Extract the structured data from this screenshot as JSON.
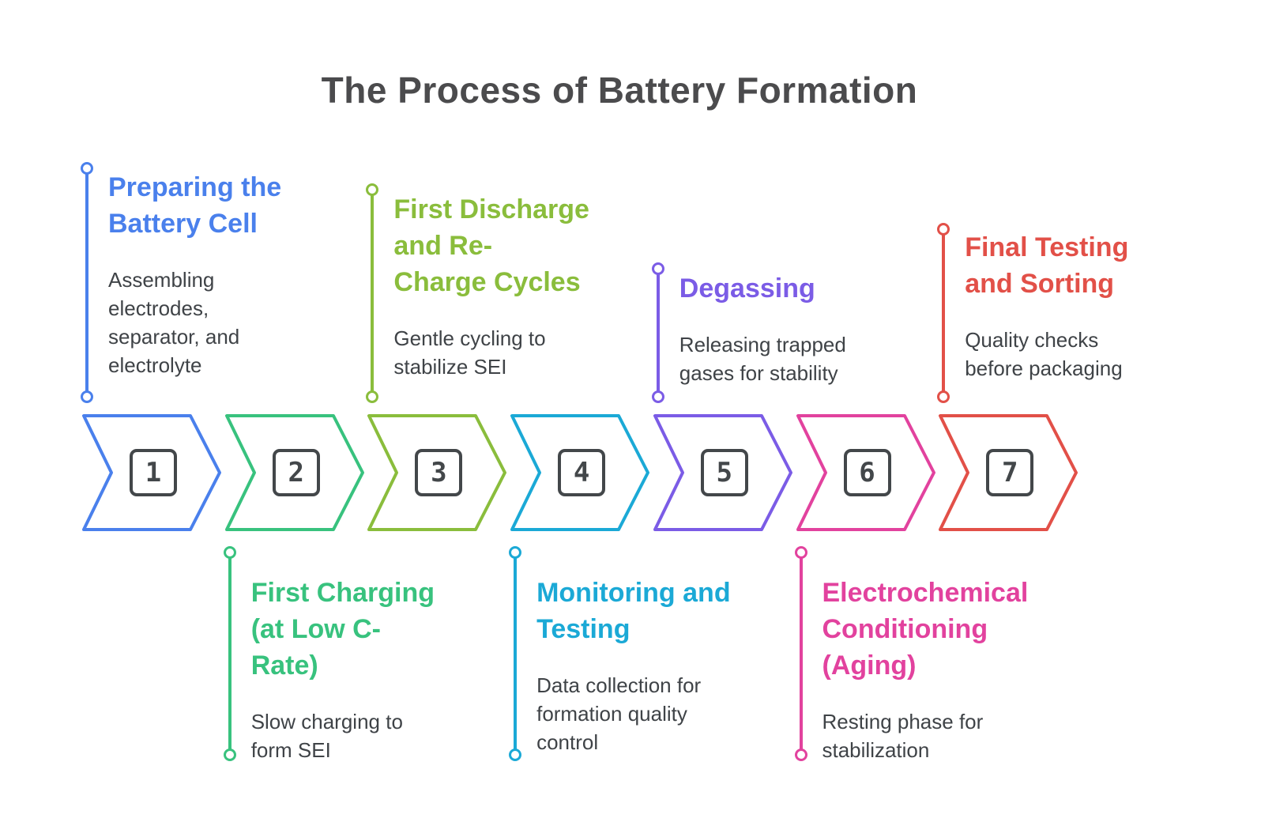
{
  "title": "The Process of Battery Formation",
  "colors": {
    "title_text": "#4B4B4D",
    "body_text": "#3F4347",
    "number_badge": "#43474A",
    "background": "#FFFFFF"
  },
  "steps": [
    {
      "number": "1",
      "color": "#4A80EC",
      "position": "top",
      "title_lines": [
        "Preparing the",
        "Battery Cell"
      ],
      "desc_lines": [
        "Assembling",
        "electrodes,",
        "separator, and",
        "electrolyte"
      ]
    },
    {
      "number": "2",
      "color": "#38C27E",
      "position": "bottom",
      "title_lines": [
        "First Charging",
        "(at Low C-",
        "Rate)"
      ],
      "desc_lines": [
        "Slow charging to",
        "form SEI"
      ]
    },
    {
      "number": "3",
      "color": "#8ABD3C",
      "position": "top",
      "title_lines": [
        "First Discharge",
        "and Re-",
        "Charge Cycles"
      ],
      "desc_lines": [
        "Gentle cycling to",
        "stabilize SEI"
      ]
    },
    {
      "number": "4",
      "color": "#1BA9D6",
      "position": "bottom",
      "title_lines": [
        "Monitoring and",
        "Testing"
      ],
      "desc_lines": [
        "Data collection for",
        "formation quality",
        "control"
      ]
    },
    {
      "number": "5",
      "color": "#7B5CE6",
      "position": "top",
      "title_lines": [
        "Degassing"
      ],
      "desc_lines": [
        "Releasing trapped",
        "gases for stability"
      ]
    },
    {
      "number": "6",
      "color": "#E2429E",
      "position": "bottom",
      "title_lines": [
        "Electrochemical",
        "Conditioning",
        "(Aging)"
      ],
      "desc_lines": [
        "Resting phase for",
        "stabilization"
      ]
    },
    {
      "number": "7",
      "color": "#E25048",
      "position": "top",
      "title_lines": [
        "Final Testing",
        "and Sorting"
      ],
      "desc_lines": [
        "Quality checks",
        "before packaging"
      ]
    }
  ]
}
